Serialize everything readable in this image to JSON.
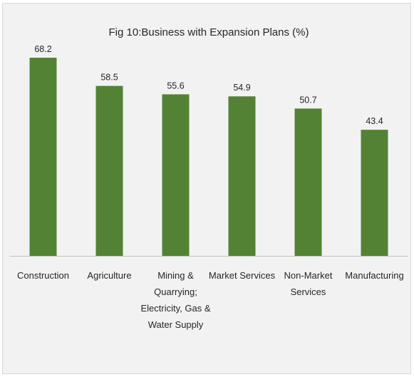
{
  "chart_data": {
    "type": "bar",
    "title": "Fig 10:Business with Expansion Plans (%)",
    "categories": [
      "Construction",
      "Agriculture",
      "Mining & Quarrying; Electricity, Gas & Water Supply",
      "Market Services",
      "Non-Market Services",
      "Manufacturing"
    ],
    "category_lines": [
      [
        "Construction"
      ],
      [
        "Agriculture"
      ],
      [
        "Mining &",
        "Quarrying;",
        "Electricity, Gas &",
        "Water Supply"
      ],
      [
        "Market Services"
      ],
      [
        "Non-Market",
        "Services"
      ],
      [
        "Manufacturing"
      ]
    ],
    "values": [
      68.2,
      58.5,
      55.6,
      54.9,
      50.7,
      43.4
    ],
    "data_labels": [
      "68.2",
      "58.5",
      "55.6",
      "54.9",
      "50.7",
      "43.4"
    ],
    "xlabel": "",
    "ylabel": "",
    "ylim": [
      0,
      68.2
    ],
    "grid": false,
    "legend": "none",
    "colors": {
      "bar": "#548235",
      "background": "#f2f2f2",
      "axis": "#bfbfbf",
      "text": "#262626"
    }
  }
}
